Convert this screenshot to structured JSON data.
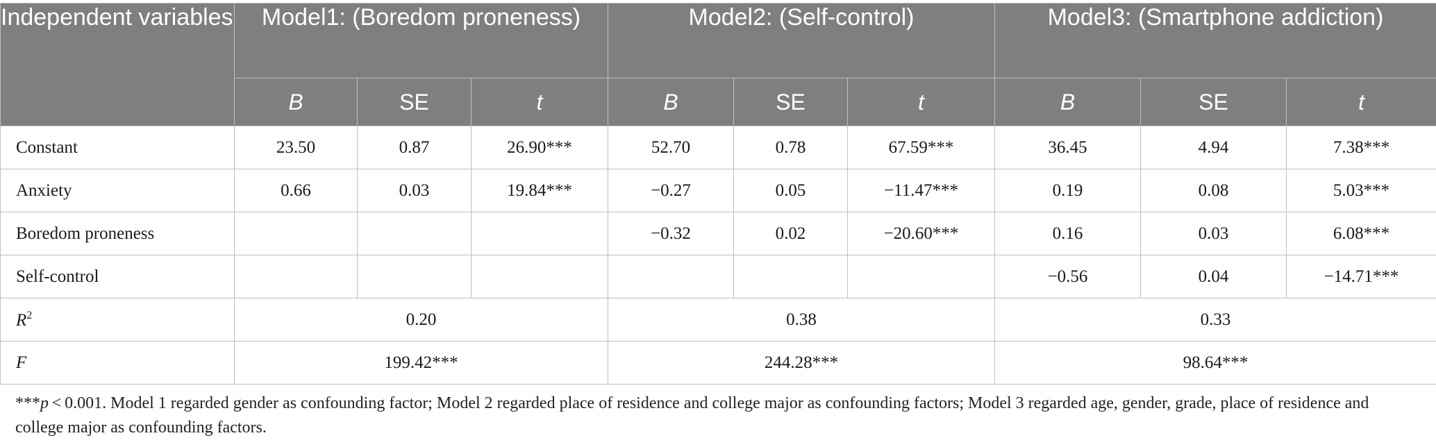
{
  "table": {
    "iv_header": "Independent variables",
    "models": [
      {
        "title": "Model1: (Boredom proneness)"
      },
      {
        "title": "Model2: (Self-control)"
      },
      {
        "title": "Model3: (Smartphone addiction)"
      }
    ],
    "sub_headers": [
      "B",
      "SE",
      "t",
      "B",
      "SE",
      "t",
      "B",
      "SE",
      "t"
    ],
    "rows": [
      {
        "label": "Constant",
        "cells": [
          "23.50",
          "0.87",
          "26.90***",
          "52.70",
          "0.78",
          "67.59***",
          "36.45",
          "4.94",
          "7.38***"
        ]
      },
      {
        "label": "Anxiety",
        "cells": [
          "0.66",
          "0.03",
          "19.84***",
          "−0.27",
          "0.05",
          "−11.47***",
          "0.19",
          "0.08",
          "5.03***"
        ]
      },
      {
        "label": "Boredom proneness",
        "cells": [
          "",
          "",
          "",
          "−0.32",
          "0.02",
          "−20.60***",
          "0.16",
          "0.03",
          "6.08***"
        ]
      },
      {
        "label": "Self-control",
        "cells": [
          "",
          "",
          "",
          "",
          "",
          "",
          "−0.56",
          "0.04",
          "−14.71***"
        ]
      }
    ],
    "r2": {
      "label": "R",
      "label_sup": "2",
      "values": [
        "0.20",
        "0.38",
        "0.33"
      ]
    },
    "f": {
      "label": "F",
      "values": [
        "199.42***",
        "244.28***",
        "98.64***"
      ]
    }
  },
  "note": {
    "p_prefix": "***",
    "p_symbol": "p",
    "text": " < 0.001. Model 1 regarded gender as confounding factor; Model 2 regarded place of residence and college major as confounding factors; Model 3 regarded age, gender, grade, place of residence and college major as confounding factors."
  },
  "colors": {
    "header_bg": "#7f7f7e",
    "header_text": "#ffffff",
    "grid": "#bfbfbf"
  }
}
